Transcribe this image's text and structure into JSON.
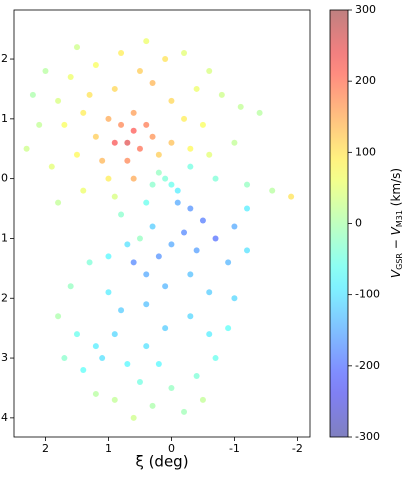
{
  "chart_data": {
    "type": "scatter",
    "xlabel": "ξ (deg)",
    "colorbar_label": {
      "v1": "V",
      "s1": "GSR",
      "mid": " − ",
      "v2": "V",
      "s2": "M31",
      "unit": " (km/s)"
    },
    "colormap": "jet",
    "alpha": 0.5,
    "xlim": [
      2.5,
      -2.2
    ],
    "xticks": [
      2,
      1,
      0,
      -1,
      -2
    ],
    "ylim": [
      -4.32,
      2.82
    ],
    "yticks": [
      2,
      1,
      0,
      {
        "value": -1,
        "label": "1"
      },
      {
        "value": -2,
        "label": "2"
      },
      {
        "value": -3,
        "label": "3"
      },
      {
        "value": -4,
        "label": "4"
      }
    ],
    "clim": [
      -300,
      300
    ],
    "cticks": [
      300,
      200,
      100,
      0,
      -100,
      -200,
      -300
    ],
    "x": [
      0.6,
      0.7,
      0.5,
      0.8,
      0.4,
      0.9,
      0.6,
      0.3,
      1.0,
      0.7,
      0.2,
      1.2,
      1.4,
      1.8,
      2.1,
      2.3,
      1.9,
      1.5,
      1.1,
      1.6,
      1.2,
      0.8,
      0.4,
      0.1,
      0.3,
      0,
      -0.2,
      -0.4,
      -0.6,
      -0.8,
      -1.1,
      -1.4,
      -0.5,
      -0.3,
      0,
      -0.6,
      2.0,
      1.5,
      0.9,
      1.7,
      2.2,
      -1.0,
      0.5,
      1.3,
      -0.2,
      0.6,
      1.0,
      1.4,
      0.9,
      1.8,
      0.1,
      0.0,
      0.2,
      -0.1,
      0.3,
      -0.3,
      -0.7,
      -1.2,
      -1.6,
      -1.9,
      0.4,
      0.8,
      -0.3,
      -0.5,
      -0.2,
      -0.7,
      -0.4,
      -1.0,
      -0.9,
      0.0,
      0.2,
      0.4,
      0.6,
      0.1,
      -0.3,
      -0.6,
      -1.0,
      -1.2,
      -0.1,
      0.3,
      0.7,
      1.0,
      -1.2,
      1.3,
      1.6,
      1.8,
      1.5,
      1.2,
      0.9,
      1.1,
      1.4,
      1.7,
      0.7,
      0.4,
      0.1,
      -0.3,
      -0.6,
      -0.9,
      -0.7,
      -0.4,
      0,
      0.3,
      0.6,
      0.9,
      1.2,
      -0.2,
      -0.5,
      0.5,
      0.2,
      0.8,
      0.4,
      1.0,
      0.5
    ],
    "y": [
      0.8,
      0.6,
      0.5,
      0.9,
      0.9,
      0.6,
      1.1,
      0.7,
      1.0,
      0.3,
      0.4,
      0.7,
      1.1,
      1.3,
      0.9,
      0.5,
      0.2,
      0.4,
      0.3,
      1.7,
      1.9,
      2.1,
      2.3,
      2.0,
      1.6,
      1.3,
      1.0,
      1.5,
      1.8,
      1.4,
      1.2,
      1.1,
      0.9,
      0.5,
      0.6,
      0.4,
      1.8,
      2.2,
      1.5,
      0.9,
      1.4,
      0.6,
      1.8,
      1.4,
      2.1,
      0.0,
      0.0,
      -0.2,
      -0.3,
      -0.4,
      0.0,
      -0.1,
      0.1,
      -0.2,
      -0.1,
      0.2,
      0.0,
      -0.1,
      -0.2,
      -0.3,
      -0.4,
      -0.6,
      -0.5,
      -0.7,
      -0.9,
      -1.0,
      -1.2,
      -0.8,
      -1.4,
      -1.1,
      -1.3,
      -1.6,
      -1.4,
      -1.8,
      -1.6,
      -1.9,
      -2.0,
      -1.2,
      -0.4,
      -0.8,
      -1.1,
      -1.3,
      -0.5,
      -1.4,
      -1.8,
      -2.3,
      -2.6,
      -2.8,
      -2.6,
      -3.0,
      -3.2,
      -3.0,
      -3.1,
      -2.8,
      -2.5,
      -2.3,
      -2.6,
      -2.5,
      -3.0,
      -3.3,
      -3.5,
      -3.8,
      -4.0,
      -3.7,
      -3.6,
      -3.9,
      -3.7,
      -3.4,
      -3.1,
      -2.2,
      -2.1,
      -1.9,
      -1.0
    ],
    "c": [
      220,
      250,
      200,
      180,
      190,
      230,
      160,
      170,
      150,
      180,
      120,
      120,
      90,
      40,
      20,
      30,
      50,
      80,
      140,
      60,
      70,
      90,
      60,
      100,
      140,
      110,
      90,
      60,
      40,
      30,
      20,
      10,
      70,
      80,
      130,
      50,
      10,
      30,
      110,
      70,
      0,
      20,
      120,
      100,
      50,
      150,
      90,
      60,
      40,
      20,
      -40,
      -60,
      -20,
      -90,
      -30,
      -50,
      -40,
      -20,
      10,
      100,
      -60,
      -30,
      -170,
      -190,
      -180,
      -200,
      -160,
      -150,
      -140,
      -150,
      -170,
      -150,
      -180,
      -140,
      -130,
      -120,
      -110,
      -100,
      -150,
      -120,
      -100,
      -80,
      -90,
      -40,
      -20,
      0,
      -60,
      -90,
      -110,
      -100,
      -70,
      -30,
      -80,
      -100,
      -120,
      -110,
      -90,
      -70,
      -60,
      -40,
      -20,
      0,
      30,
      20,
      10,
      -10,
      20,
      -50,
      -80,
      -120,
      -130,
      -90,
      -20
    ]
  }
}
